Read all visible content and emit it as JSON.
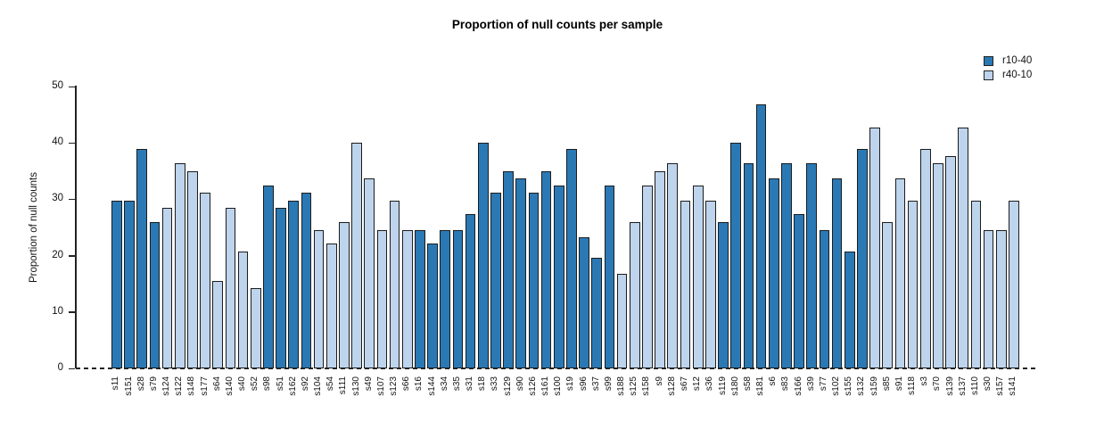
{
  "title": "Proportion of null counts per sample",
  "legend": {
    "position": "top-right",
    "items": [
      {
        "label": "r10-40",
        "color": "#2a79b5"
      },
      {
        "label": "r40-10",
        "color": "#bdd4ec"
      }
    ]
  },
  "chart_data": {
    "type": "bar",
    "title": "Proportion of null counts per sample",
    "xlabel": "",
    "ylabel": "Proportion of null counts",
    "ylim": [
      0,
      50
    ],
    "yticks": [
      0,
      10,
      20,
      30,
      40,
      50
    ],
    "grid": false,
    "legend_position": "top-right",
    "baseline_style": "dashed",
    "bar_border_color": "#1c1c1c",
    "series_colors": {
      "r10-40": "#2a79b5",
      "r40-10": "#bdd4ec"
    },
    "bars": [
      {
        "label": "s11",
        "value": 29.8,
        "group": "r10-40"
      },
      {
        "label": "s151",
        "value": 29.8,
        "group": "r10-40"
      },
      {
        "label": "s28",
        "value": 38.9,
        "group": "r10-40"
      },
      {
        "label": "s79",
        "value": 26.0,
        "group": "r10-40"
      },
      {
        "label": "s124",
        "value": 28.5,
        "group": "r40-10"
      },
      {
        "label": "s122",
        "value": 36.4,
        "group": "r40-10"
      },
      {
        "label": "s148",
        "value": 34.9,
        "group": "r40-10"
      },
      {
        "label": "s177",
        "value": 31.2,
        "group": "r40-10"
      },
      {
        "label": "s64",
        "value": 15.5,
        "group": "r40-10"
      },
      {
        "label": "s140",
        "value": 28.5,
        "group": "r40-10"
      },
      {
        "label": "s40",
        "value": 20.8,
        "group": "r40-10"
      },
      {
        "label": "s52",
        "value": 14.3,
        "group": "r40-10"
      },
      {
        "label": "s98",
        "value": 32.4,
        "group": "r10-40"
      },
      {
        "label": "s51",
        "value": 28.5,
        "group": "r10-40"
      },
      {
        "label": "s162",
        "value": 29.8,
        "group": "r10-40"
      },
      {
        "label": "s92",
        "value": 31.1,
        "group": "r10-40"
      },
      {
        "label": "s104",
        "value": 24.6,
        "group": "r40-10"
      },
      {
        "label": "s54",
        "value": 22.1,
        "group": "r40-10"
      },
      {
        "label": "s111",
        "value": 25.9,
        "group": "r40-10"
      },
      {
        "label": "s130",
        "value": 40.1,
        "group": "r40-10"
      },
      {
        "label": "s49",
        "value": 33.7,
        "group": "r40-10"
      },
      {
        "label": "s107",
        "value": 24.6,
        "group": "r40-10"
      },
      {
        "label": "s123",
        "value": 29.8,
        "group": "r40-10"
      },
      {
        "label": "s66",
        "value": 24.6,
        "group": "r40-10"
      },
      {
        "label": "s16",
        "value": 24.6,
        "group": "r10-40"
      },
      {
        "label": "s144",
        "value": 22.1,
        "group": "r10-40"
      },
      {
        "label": "s34",
        "value": 24.6,
        "group": "r10-40"
      },
      {
        "label": "s35",
        "value": 24.6,
        "group": "r10-40"
      },
      {
        "label": "s31",
        "value": 27.3,
        "group": "r10-40"
      },
      {
        "label": "s18",
        "value": 40.1,
        "group": "r10-40"
      },
      {
        "label": "s33",
        "value": 31.1,
        "group": "r10-40"
      },
      {
        "label": "s129",
        "value": 34.9,
        "group": "r10-40"
      },
      {
        "label": "s90",
        "value": 33.7,
        "group": "r10-40"
      },
      {
        "label": "s126",
        "value": 31.1,
        "group": "r10-40"
      },
      {
        "label": "s161",
        "value": 34.9,
        "group": "r10-40"
      },
      {
        "label": "s100",
        "value": 32.4,
        "group": "r10-40"
      },
      {
        "label": "s19",
        "value": 38.9,
        "group": "r10-40"
      },
      {
        "label": "s96",
        "value": 23.3,
        "group": "r10-40"
      },
      {
        "label": "s37",
        "value": 19.6,
        "group": "r10-40"
      },
      {
        "label": "s99",
        "value": 32.4,
        "group": "r10-40"
      },
      {
        "label": "s188",
        "value": 16.8,
        "group": "r40-10"
      },
      {
        "label": "s125",
        "value": 25.9,
        "group": "r40-10"
      },
      {
        "label": "s158",
        "value": 32.4,
        "group": "r40-10"
      },
      {
        "label": "s9",
        "value": 34.9,
        "group": "r40-10"
      },
      {
        "label": "s128",
        "value": 36.4,
        "group": "r40-10"
      },
      {
        "label": "s67",
        "value": 29.8,
        "group": "r40-10"
      },
      {
        "label": "s12",
        "value": 32.4,
        "group": "r40-10"
      },
      {
        "label": "s36",
        "value": 29.8,
        "group": "r40-10"
      },
      {
        "label": "s119",
        "value": 25.9,
        "group": "r10-40"
      },
      {
        "label": "s180",
        "value": 40.1,
        "group": "r10-40"
      },
      {
        "label": "s58",
        "value": 36.4,
        "group": "r10-40"
      },
      {
        "label": "s181",
        "value": 46.8,
        "group": "r10-40"
      },
      {
        "label": "s6",
        "value": 33.7,
        "group": "r10-40"
      },
      {
        "label": "s83",
        "value": 36.4,
        "group": "r10-40"
      },
      {
        "label": "s166",
        "value": 27.3,
        "group": "r10-40"
      },
      {
        "label": "s39",
        "value": 36.4,
        "group": "r10-40"
      },
      {
        "label": "s77",
        "value": 24.6,
        "group": "r10-40"
      },
      {
        "label": "s102",
        "value": 33.7,
        "group": "r10-40"
      },
      {
        "label": "s155",
        "value": 20.8,
        "group": "r10-40"
      },
      {
        "label": "s132",
        "value": 38.9,
        "group": "r10-40"
      },
      {
        "label": "s159",
        "value": 42.8,
        "group": "r40-10"
      },
      {
        "label": "s85",
        "value": 25.9,
        "group": "r40-10"
      },
      {
        "label": "s91",
        "value": 33.7,
        "group": "r40-10"
      },
      {
        "label": "s118",
        "value": 29.8,
        "group": "r40-10"
      },
      {
        "label": "s3",
        "value": 38.9,
        "group": "r40-10"
      },
      {
        "label": "s70",
        "value": 36.4,
        "group": "r40-10"
      },
      {
        "label": "s139",
        "value": 37.6,
        "group": "r40-10"
      },
      {
        "label": "s137",
        "value": 42.8,
        "group": "r40-10"
      },
      {
        "label": "s110",
        "value": 29.8,
        "group": "r40-10"
      },
      {
        "label": "s30",
        "value": 24.6,
        "group": "r40-10"
      },
      {
        "label": "s157",
        "value": 24.6,
        "group": "r40-10"
      },
      {
        "label": "s141",
        "value": 29.8,
        "group": "r40-10"
      }
    ]
  }
}
